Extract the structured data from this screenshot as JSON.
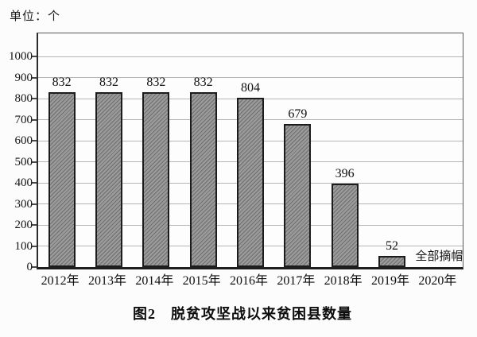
{
  "page": {
    "background": "#fcfcfc"
  },
  "chart_data": {
    "type": "bar",
    "title": "图2　脱贫攻坚战以来贫困县数量",
    "unit_label": "单位：个",
    "xlabel": "",
    "ylabel": "",
    "categories": [
      "2012年",
      "2013年",
      "2014年",
      "2015年",
      "2016年",
      "2017年",
      "2018年",
      "2019年",
      "2020年"
    ],
    "values": [
      832,
      832,
      832,
      832,
      804,
      679,
      396,
      52,
      null
    ],
    "bar_value_labels": [
      "832",
      "832",
      "832",
      "832",
      "804",
      "679",
      "396",
      "52",
      ""
    ],
    "annotation": {
      "category": "2020年",
      "category_index": 8,
      "text": "全部摘帽"
    },
    "ylim": [
      0,
      1100
    ],
    "yticks": [
      0,
      100,
      200,
      300,
      400,
      500,
      600,
      700,
      800,
      900,
      1000
    ],
    "grid": true,
    "legend": false,
    "colors": {
      "bar_fill": "#9a9a9a",
      "bar_hatch_line": "#6e6e6e",
      "bar_border": "#1c1c1c",
      "gridline": "#b5b5b5",
      "axis": "#2b2b2b",
      "text": "#141414",
      "background": "#fcfcfc"
    }
  }
}
